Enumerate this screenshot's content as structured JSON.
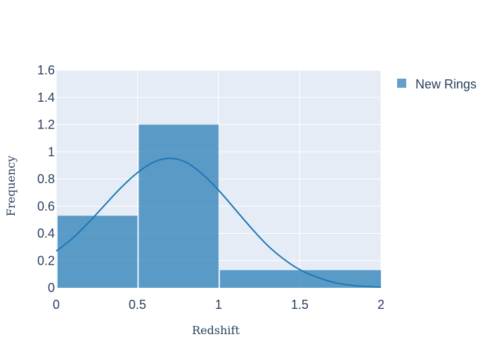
{
  "chart_data": {
    "type": "bar",
    "xlabel": "Redshift",
    "ylabel": "Frequency",
    "xlim": [
      0,
      2
    ],
    "ylim": [
      0,
      1.6
    ],
    "x_ticks": [
      0,
      0.5,
      1,
      1.5,
      2
    ],
    "x_tick_labels": [
      "0",
      "0.5",
      "1",
      "1.5",
      "2"
    ],
    "y_ticks": [
      0,
      0.2,
      0.4,
      0.6,
      0.8,
      1,
      1.2,
      1.4,
      1.6
    ],
    "y_tick_labels": [
      "0",
      "0.2",
      "0.4",
      "0.6",
      "0.8",
      "1",
      "1.2",
      "1.4",
      "1.6"
    ],
    "grid": true,
    "legend_position": "top-right",
    "series": [
      {
        "name": "New Rings",
        "kind": "histogram",
        "bins": [
          {
            "x0": 0.0,
            "x1": 0.5,
            "value": 0.53
          },
          {
            "x0": 0.5,
            "x1": 1.0,
            "value": 1.2
          },
          {
            "x0": 1.0,
            "x1": 2.0,
            "value": 0.13
          }
        ]
      },
      {
        "kind": "density-curve",
        "x": [
          0,
          0.1,
          0.2,
          0.3,
          0.4,
          0.5,
          0.6,
          0.7,
          0.8,
          0.9,
          1.0,
          1.1,
          1.2,
          1.3,
          1.4,
          1.5,
          1.6,
          1.7,
          1.8,
          1.9,
          2.0
        ],
        "y": [
          0.27,
          0.36,
          0.48,
          0.61,
          0.74,
          0.85,
          0.93,
          0.96,
          0.93,
          0.84,
          0.72,
          0.58,
          0.44,
          0.31,
          0.21,
          0.13,
          0.08,
          0.04,
          0.02,
          0.01,
          0.005
        ]
      }
    ],
    "colors": {
      "bar": "#1f77b4",
      "curve": "#1f77b4",
      "plot_background": "#e5ecf6",
      "grid": "#ffffff",
      "text": "#2a3f5f"
    }
  }
}
